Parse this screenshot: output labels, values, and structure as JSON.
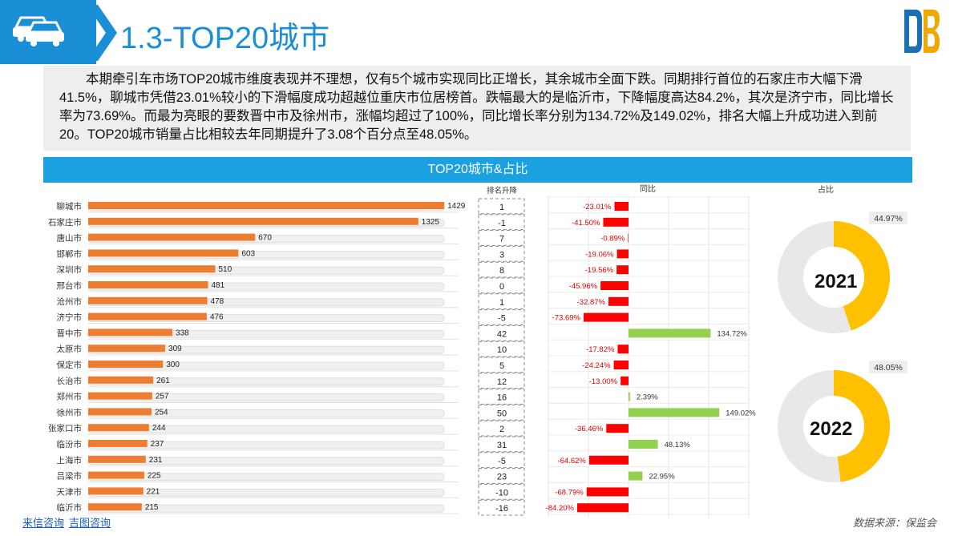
{
  "title": "1.3-TOP20城市",
  "description": "本期牵引车市场TOP20城市维度表现并不理想，仅有5个城市实现同比正增长，其余城市全面下跌。同期排行首位的石家庄市大幅下滑41.5%，聊城市凭借23.01%较小的下滑幅度成功超越位重庆市位居榜首。跌幅最大的是临沂市，下降幅度高达84.2%，其次是济宁市，同比增长率为73.69%。而最为亮眼的要数晋中市及徐州市，涨幅均超过了100%，同比增长率分别为134.72%及149.02%，排名大幅上升成功进入到前20。TOP20城市销量占比相较去年同期提升了3.08个百分点至48.05%。",
  "banner": "TOP20城市&占比",
  "footer": {
    "link1": "来信咨询",
    "link2": "吉图咨询",
    "source": "数据来源：保监会"
  },
  "colors": {
    "bar": "#ed7d31",
    "neg": "#ff0000",
    "pos": "#92d050",
    "donut": "#ffc000",
    "track": "#e8e8e8",
    "accent": "#1b8fd6"
  },
  "chart_data": [
    {
      "type": "bar",
      "categories": [
        "聊城市",
        "石家庄市",
        "唐山市",
        "邯郸市",
        "深圳市",
        "邢台市",
        "沧州市",
        "济宁市",
        "晋中市",
        "太原市",
        "保定市",
        "长治市",
        "郑州市",
        "徐州市",
        "张家口市",
        "临汾市",
        "上海市",
        "吕梁市",
        "天津市",
        "临沂市"
      ],
      "values": [
        1429,
        1325,
        670,
        603,
        510,
        481,
        478,
        476,
        338,
        309,
        300,
        261,
        257,
        254,
        244,
        237,
        231,
        225,
        221,
        215
      ],
      "xlim": [
        0,
        1500
      ]
    },
    {
      "type": "table",
      "header": "排名升降",
      "values": [
        "1",
        "-1",
        "7",
        "3",
        "8",
        "0",
        "1",
        "-5",
        "42",
        "10",
        "5",
        "12",
        "16",
        "50",
        "2",
        "31",
        "-5",
        "23",
        "-10",
        "-16"
      ]
    },
    {
      "type": "bar",
      "title": "同比",
      "values": [
        -23.01,
        -41.5,
        -0.89,
        -19.06,
        -19.56,
        -45.96,
        -32.87,
        -73.69,
        134.72,
        -17.82,
        -24.24,
        -13.0,
        2.39,
        149.02,
        -36.46,
        48.13,
        -64.62,
        22.95,
        -68.79,
        -84.2
      ],
      "labels": [
        "-23.01%",
        "-41.50%",
        "-0.89%",
        "-19.06%",
        "-19.56%",
        "-45.96%",
        "-32.87%",
        "-73.69%",
        "134.72%",
        "-17.82%",
        "-24.24%",
        "-13.00%",
        "2.39%",
        "149.02%",
        "-36.46%",
        "48.13%",
        "-64.62%",
        "22.95%",
        "-68.79%",
        "-84.20%"
      ]
    },
    {
      "type": "pie",
      "title": "占比",
      "donuts": [
        {
          "label": "2021",
          "value": 44.97,
          "value_label": "44.97%"
        },
        {
          "label": "2022",
          "value": 48.05,
          "value_label": "48.05%"
        }
      ]
    }
  ]
}
